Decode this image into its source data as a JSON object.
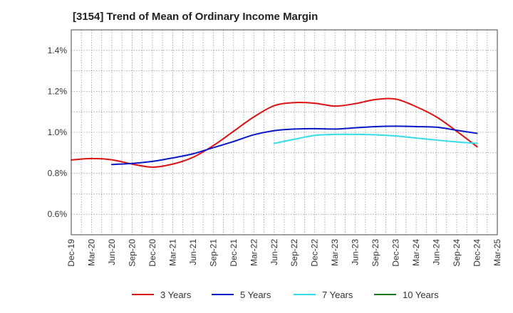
{
  "chart_data": {
    "type": "line",
    "title": "[3154]  Trend of Mean of Ordinary Income Margin",
    "xlabel": "",
    "ylabel": "",
    "categories": [
      "Dec-19",
      "Mar-20",
      "Jun-20",
      "Sep-20",
      "Dec-20",
      "Mar-21",
      "Jun-21",
      "Sep-21",
      "Dec-21",
      "Mar-22",
      "Jun-22",
      "Sep-22",
      "Dec-22",
      "Mar-23",
      "Jun-23",
      "Sep-23",
      "Dec-23",
      "Mar-24",
      "Jun-24",
      "Sep-24",
      "Dec-24",
      "Mar-25"
    ],
    "y_ticks": [
      "0.6%",
      "0.8%",
      "1.0%",
      "1.2%",
      "1.4%"
    ],
    "ylim": [
      0.5,
      1.5
    ],
    "grid": true,
    "legend_position": "bottom",
    "series": [
      {
        "name": "3 Years",
        "color": "#dd1111",
        "values": [
          0.865,
          0.872,
          0.866,
          0.845,
          0.83,
          0.845,
          0.878,
          0.935,
          1.005,
          1.075,
          1.13,
          1.145,
          1.142,
          1.128,
          1.14,
          1.16,
          1.162,
          1.125,
          1.075,
          1.005,
          0.93,
          null
        ]
      },
      {
        "name": "5 Years",
        "color": "#0a17c8",
        "values": [
          null,
          null,
          0.843,
          0.848,
          0.858,
          0.875,
          0.895,
          0.925,
          0.955,
          0.988,
          1.008,
          1.016,
          1.018,
          1.016,
          1.022,
          1.028,
          1.03,
          1.028,
          1.025,
          1.01,
          0.995,
          null
        ]
      },
      {
        "name": "7 Years",
        "color": "#33dde8",
        "values": [
          null,
          null,
          null,
          null,
          null,
          null,
          null,
          null,
          null,
          null,
          0.946,
          0.966,
          0.985,
          0.99,
          0.99,
          0.988,
          0.982,
          0.972,
          0.962,
          0.953,
          0.946,
          null
        ]
      },
      {
        "name": "10 Years",
        "color": "#1a7a1a",
        "values": [
          null,
          null,
          null,
          null,
          null,
          null,
          null,
          null,
          null,
          null,
          null,
          null,
          null,
          null,
          null,
          null,
          null,
          null,
          null,
          null,
          null,
          null
        ]
      }
    ]
  }
}
